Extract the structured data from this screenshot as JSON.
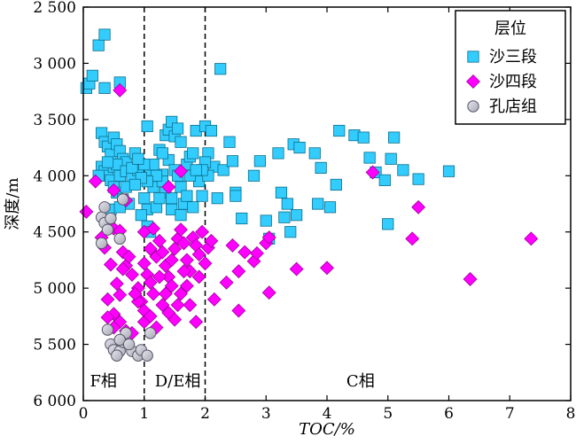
{
  "chart_data": {
    "type": "scatter",
    "xlabel": "TOC/%",
    "ylabel": "深度/m",
    "xlim": [
      0,
      8
    ],
    "ylim": [
      2500,
      6000
    ],
    "y_inverted": true,
    "x_ticks": [
      "0",
      "1",
      "2",
      "3",
      "4",
      "5",
      "6",
      "7",
      "8"
    ],
    "y_ticks": [
      "2 500",
      "3 000",
      "3 500",
      "4 000",
      "4 500",
      "5 000",
      "5 500",
      "6 000"
    ],
    "x_tick_values": [
      0,
      1,
      2,
      3,
      4,
      5,
      6,
      7,
      8
    ],
    "y_tick_values": [
      2500,
      3000,
      3500,
      4000,
      4500,
      5000,
      5500,
      6000
    ],
    "dividers": [
      1.0,
      2.0
    ],
    "regions": [
      {
        "label": "F相",
        "x": 0.33
      },
      {
        "label": "D/E相",
        "x": 1.55
      },
      {
        "label": "C相",
        "x": 4.55
      }
    ],
    "legend": {
      "title": "层位",
      "position": "top-right"
    },
    "series": [
      {
        "name": "沙三段",
        "marker": "square",
        "color": "#33ccff",
        "points": [
          [
            0.05,
            3220
          ],
          [
            0.1,
            3180
          ],
          [
            0.15,
            3110
          ],
          [
            0.25,
            2840
          ],
          [
            0.35,
            2745
          ],
          [
            0.35,
            3220
          ],
          [
            0.6,
            3170
          ],
          [
            0.3,
            3620
          ],
          [
            0.35,
            3700
          ],
          [
            0.4,
            3740
          ],
          [
            0.45,
            3810
          ],
          [
            0.5,
            3660
          ],
          [
            0.55,
            3720
          ],
          [
            0.6,
            3780
          ],
          [
            0.65,
            3850
          ],
          [
            0.7,
            3880
          ],
          [
            0.3,
            3920
          ],
          [
            0.35,
            3960
          ],
          [
            0.4,
            4000
          ],
          [
            0.45,
            4040
          ],
          [
            0.5,
            3920
          ],
          [
            0.55,
            3900
          ],
          [
            0.6,
            4000
          ],
          [
            0.25,
            4000
          ],
          [
            0.7,
            3960
          ],
          [
            0.8,
            4010
          ],
          [
            0.85,
            3800
          ],
          [
            0.9,
            3950
          ],
          [
            0.5,
            4100
          ],
          [
            0.55,
            4150
          ],
          [
            0.65,
            4210
          ],
          [
            0.75,
            4250
          ],
          [
            0.4,
            3880
          ],
          [
            0.8,
            3930
          ],
          [
            1.05,
            3560
          ],
          [
            1.1,
            3950
          ],
          [
            1.15,
            4100
          ],
          [
            1.0,
            4200
          ],
          [
            1.05,
            4300
          ],
          [
            0.95,
            4350
          ],
          [
            1.05,
            4450
          ],
          [
            1.1,
            4500
          ],
          [
            1.2,
            4280
          ],
          [
            1.25,
            3770
          ],
          [
            1.3,
            3990
          ],
          [
            1.35,
            3640
          ],
          [
            1.4,
            3590
          ],
          [
            1.45,
            3520
          ],
          [
            1.4,
            3860
          ],
          [
            1.5,
            3650
          ],
          [
            1.55,
            3580
          ],
          [
            1.6,
            3700
          ],
          [
            1.3,
            4050
          ],
          [
            1.35,
            4150
          ],
          [
            1.45,
            4200
          ],
          [
            1.5,
            3950
          ],
          [
            1.55,
            4000
          ],
          [
            1.6,
            4100
          ],
          [
            1.65,
            4250
          ],
          [
            1.7,
            3900
          ],
          [
            1.75,
            3830
          ],
          [
            1.8,
            3800
          ],
          [
            1.85,
            3600
          ],
          [
            1.9,
            4050
          ],
          [
            1.95,
            4180
          ],
          [
            1.45,
            4300
          ],
          [
            1.6,
            4350
          ],
          [
            1.7,
            4180
          ],
          [
            1.8,
            4280
          ],
          [
            1.25,
            4200
          ],
          [
            1.15,
            3900
          ],
          [
            1.3,
            3800
          ],
          [
            1.0,
            3900
          ],
          [
            0.9,
            3850
          ],
          [
            2.0,
            3560
          ],
          [
            2.05,
            3800
          ],
          [
            2.1,
            3600
          ],
          [
            2.15,
            3920
          ],
          [
            2.2,
            4200
          ],
          [
            2.25,
            3050
          ],
          [
            2.3,
            3950
          ],
          [
            2.4,
            3700
          ],
          [
            2.45,
            3870
          ],
          [
            2.5,
            4150
          ],
          [
            2.5,
            4180
          ],
          [
            2.6,
            4380
          ],
          [
            2.8,
            4000
          ],
          [
            2.9,
            3870
          ],
          [
            3.0,
            4400
          ],
          [
            3.05,
            4560
          ],
          [
            3.2,
            3800
          ],
          [
            3.25,
            4150
          ],
          [
            3.3,
            4370
          ],
          [
            3.35,
            4250
          ],
          [
            3.4,
            4500
          ],
          [
            3.45,
            3720
          ],
          [
            3.5,
            4350
          ],
          [
            3.55,
            3750
          ],
          [
            3.8,
            3800
          ],
          [
            3.85,
            4250
          ],
          [
            3.9,
            3930
          ],
          [
            4.05,
            4280
          ],
          [
            4.15,
            4080
          ],
          [
            4.2,
            3600
          ],
          [
            4.45,
            3640
          ],
          [
            4.6,
            3660
          ],
          [
            4.7,
            3840
          ],
          [
            4.8,
            3970
          ],
          [
            4.95,
            4040
          ],
          [
            5.0,
            4430
          ],
          [
            5.05,
            3850
          ],
          [
            5.1,
            3660
          ],
          [
            5.25,
            3950
          ],
          [
            5.5,
            4030
          ],
          [
            6.0,
            3960
          ],
          [
            0.45,
            4300
          ],
          [
            0.6,
            4280
          ],
          [
            2.0,
            3880
          ],
          [
            2.05,
            4000
          ],
          [
            1.95,
            3950
          ],
          [
            1.75,
            4000
          ],
          [
            1.85,
            3950
          ],
          [
            1.2,
            4000
          ],
          [
            0.7,
            4100
          ],
          [
            1.05,
            4050
          ],
          [
            0.95,
            4020
          ],
          [
            0.85,
            4080
          ]
        ]
      },
      {
        "name": "沙四段",
        "marker": "diamond",
        "color": "#ff00ff",
        "points": [
          [
            0.05,
            4320
          ],
          [
            0.2,
            4050
          ],
          [
            0.6,
            3240
          ],
          [
            0.3,
            4550
          ],
          [
            0.35,
            4640
          ],
          [
            0.5,
            4470
          ],
          [
            0.6,
            4490
          ],
          [
            0.65,
            4680
          ],
          [
            0.45,
            4790
          ],
          [
            0.55,
            4960
          ],
          [
            0.6,
            5060
          ],
          [
            0.7,
            4800
          ],
          [
            0.8,
            4880
          ],
          [
            0.9,
            5000
          ],
          [
            0.95,
            5120
          ],
          [
            1.0,
            5200
          ],
          [
            0.5,
            5230
          ],
          [
            0.6,
            5300
          ],
          [
            0.4,
            5260
          ],
          [
            0.5,
            5350
          ],
          [
            0.7,
            5380
          ],
          [
            0.8,
            5400
          ],
          [
            0.9,
            5120
          ],
          [
            1.0,
            5300
          ],
          [
            1.0,
            4780
          ],
          [
            1.05,
            4880
          ],
          [
            1.1,
            4950
          ],
          [
            1.15,
            5050
          ],
          [
            1.2,
            4720
          ],
          [
            1.25,
            4580
          ],
          [
            1.3,
            4680
          ],
          [
            1.35,
            4800
          ],
          [
            1.4,
            4900
          ],
          [
            1.45,
            4980
          ],
          [
            1.5,
            4650
          ],
          [
            1.55,
            4560
          ],
          [
            1.6,
            4480
          ],
          [
            1.65,
            4600
          ],
          [
            1.7,
            4750
          ],
          [
            1.75,
            4850
          ],
          [
            1.8,
            4550
          ],
          [
            1.85,
            4620
          ],
          [
            1.9,
            4700
          ],
          [
            1.95,
            4500
          ],
          [
            2.0,
            4780
          ],
          [
            2.05,
            4640
          ],
          [
            2.1,
            4580
          ],
          [
            1.3,
            5150
          ],
          [
            1.4,
            5220
          ],
          [
            1.5,
            5280
          ],
          [
            1.6,
            5050
          ],
          [
            1.7,
            4980
          ],
          [
            1.2,
            5350
          ],
          [
            1.1,
            5250
          ],
          [
            1.55,
            5150
          ],
          [
            1.85,
            5300
          ],
          [
            2.15,
            5100
          ],
          [
            2.35,
            4950
          ],
          [
            2.45,
            4620
          ],
          [
            2.55,
            4850
          ],
          [
            2.65,
            4680
          ],
          [
            2.8,
            4760
          ],
          [
            2.85,
            4690
          ],
          [
            3.0,
            4600
          ],
          [
            3.05,
            4550
          ],
          [
            3.05,
            5040
          ],
          [
            3.5,
            4830
          ],
          [
            4.0,
            4820
          ],
          [
            4.75,
            3970
          ],
          [
            5.4,
            4560
          ],
          [
            5.5,
            4280
          ],
          [
            6.35,
            4920
          ],
          [
            7.35,
            4560
          ],
          [
            0.7,
            4220
          ],
          [
            0.5,
            4130
          ],
          [
            1.4,
            4100
          ],
          [
            1.6,
            3960
          ],
          [
            2.55,
            5200
          ],
          [
            1.0,
            4500
          ],
          [
            1.1,
            4650
          ],
          [
            0.75,
            4720
          ],
          [
            0.65,
            4830
          ],
          [
            0.85,
            5050
          ],
          [
            0.4,
            5100
          ],
          [
            1.15,
            4470
          ],
          [
            1.25,
            4900
          ],
          [
            1.35,
            5050
          ],
          [
            1.45,
            4750
          ],
          [
            1.65,
            4850
          ],
          [
            1.75,
            5150
          ],
          [
            1.9,
            4900
          ]
        ]
      },
      {
        "name": "孔店组",
        "marker": "circle",
        "color": "#c0c0c8",
        "points": [
          [
            0.3,
            4370
          ],
          [
            0.35,
            4420
          ],
          [
            0.4,
            4480
          ],
          [
            0.35,
            4280
          ],
          [
            0.45,
            4380
          ],
          [
            0.6,
            4560
          ],
          [
            0.65,
            4210
          ],
          [
            0.3,
            4600
          ],
          [
            0.4,
            5370
          ],
          [
            0.45,
            5500
          ],
          [
            0.5,
            5550
          ],
          [
            0.6,
            5560
          ],
          [
            0.65,
            5480
          ],
          [
            0.7,
            5400
          ],
          [
            0.8,
            5560
          ],
          [
            0.9,
            5600
          ],
          [
            0.55,
            5600
          ],
          [
            0.95,
            5550
          ],
          [
            1.05,
            5600
          ],
          [
            1.1,
            5400
          ],
          [
            0.6,
            5460
          ],
          [
            0.75,
            5500
          ]
        ]
      }
    ]
  }
}
